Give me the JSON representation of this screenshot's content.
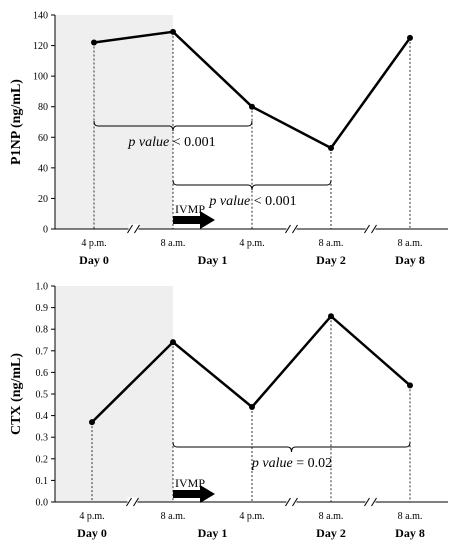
{
  "chart_data": [
    {
      "type": "line",
      "ylabel": "P1NP (ng/mL)",
      "ylim": [
        0,
        140
      ],
      "yticks": [
        0,
        20,
        40,
        60,
        80,
        100,
        120,
        140
      ],
      "x_tick_labels": [
        "4 p.m.",
        "8 a.m.",
        "4 p.m.",
        "8 a.m.",
        "8 a.m."
      ],
      "day_labels": [
        "Day 0",
        "Day 1",
        "Day 2",
        "Day 8"
      ],
      "values": [
        122,
        129,
        80,
        53,
        125
      ],
      "treatment_label": "IVMP",
      "annotations": [
        {
          "prefix": "p value",
          "text": " < 0.001",
          "from": 0,
          "to": 2
        },
        {
          "prefix": "p value",
          "text": " < 0.001",
          "from": 1,
          "to": 3
        }
      ]
    },
    {
      "type": "line",
      "ylabel": "CTX (ng/mL)",
      "ylim": [
        0,
        1.0
      ],
      "yticks": [
        0.0,
        0.1,
        0.2,
        0.3,
        0.4,
        0.5,
        0.6,
        0.7,
        0.8,
        0.9,
        1.0
      ],
      "x_tick_labels": [
        "4 p.m.",
        "8 a.m.",
        "4 p.m.",
        "8 a.m.",
        "8 a.m."
      ],
      "day_labels": [
        "Day 0",
        "Day 1",
        "Day 2",
        "Day 8"
      ],
      "values": [
        0.37,
        0.74,
        0.44,
        0.86,
        0.54
      ],
      "treatment_label": "IVMP",
      "annotations": [
        {
          "prefix": "p value",
          "text": " = 0.02",
          "from": 1,
          "to": 4
        }
      ]
    }
  ]
}
